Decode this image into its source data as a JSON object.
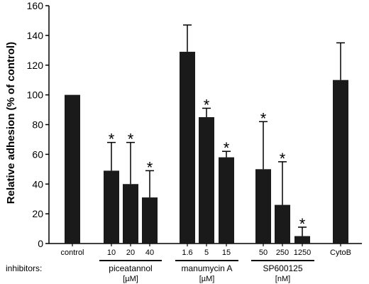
{
  "chart_data": {
    "type": "bar",
    "ylabel": "Relative adhesion (% of control)",
    "ylim": [
      0,
      160
    ],
    "yticks": [
      0,
      20,
      40,
      60,
      80,
      100,
      120,
      140,
      160
    ],
    "grid": false,
    "row_label": "inhibitors:",
    "categories": [
      "control",
      "10",
      "20",
      "40",
      "1.6",
      "5",
      "15",
      "50",
      "250",
      "1250",
      "CytoB"
    ],
    "values": [
      100,
      49,
      40,
      31,
      129,
      85,
      58,
      50,
      26,
      5,
      110
    ],
    "error_upper": [
      null,
      68,
      68,
      49,
      147,
      91,
      62,
      82,
      55,
      11,
      135
    ],
    "significant": [
      false,
      true,
      true,
      true,
      false,
      true,
      true,
      true,
      true,
      true,
      false
    ],
    "significance_marker": "*",
    "groups": [
      {
        "name": "piceatannol",
        "unit": "[µM]",
        "members": [
          1,
          2,
          3
        ]
      },
      {
        "name": "manumycin A",
        "unit": "[µM]",
        "members": [
          4,
          5,
          6
        ]
      },
      {
        "name": "SP600125",
        "unit": "[nM]",
        "members": [
          7,
          8,
          9
        ]
      }
    ],
    "bar_color": "#1a1a1a"
  }
}
